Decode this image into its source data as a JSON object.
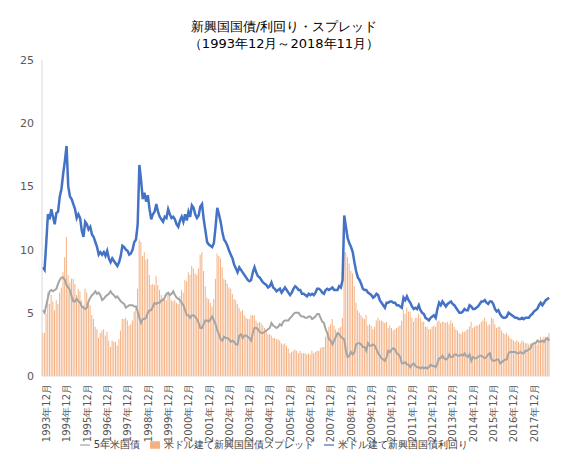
{
  "chart_data": {
    "type": "combo",
    "title": "新興国国債/利回り・スプレッド",
    "subtitle": "（1993年12月～2018年11月）",
    "categories": [
      "1993年12月",
      null,
      null,
      null,
      null,
      null,
      null,
      null,
      null,
      null,
      null,
      null,
      "1994年12月",
      null,
      null,
      null,
      null,
      null,
      null,
      null,
      null,
      null,
      null,
      null,
      "1995年12月",
      null,
      null,
      null,
      null,
      null,
      null,
      null,
      null,
      null,
      null,
      null,
      "1996年12月",
      null,
      null,
      null,
      null,
      null,
      null,
      null,
      null,
      null,
      null,
      null,
      "1997年12月",
      null,
      null,
      null,
      null,
      null,
      null,
      null,
      null,
      null,
      null,
      null,
      "1998年12月",
      null,
      null,
      null,
      null,
      null,
      null,
      null,
      null,
      null,
      null,
      null,
      "1999年12月",
      null,
      null,
      null,
      null,
      null,
      null,
      null,
      null,
      null,
      null,
      null,
      "2000年12月",
      null,
      null,
      null,
      null,
      null,
      null,
      null,
      null,
      null,
      null,
      null,
      "2001年12月",
      null,
      null,
      null,
      null,
      null,
      null,
      null,
      null,
      null,
      null,
      null,
      "2002年12月",
      null,
      null,
      null,
      null,
      null,
      null,
      null,
      null,
      null,
      null,
      null,
      "2003年12月",
      null,
      null,
      null,
      null,
      null,
      null,
      null,
      null,
      null,
      null,
      null,
      "2004年12月",
      null,
      null,
      null,
      null,
      null,
      null,
      null,
      null,
      null,
      null,
      null,
      "2005年12月",
      null,
      null,
      null,
      null,
      null,
      null,
      null,
      null,
      null,
      null,
      null,
      "2006年12月",
      null,
      null,
      null,
      null,
      null,
      null,
      null,
      null,
      null,
      null,
      null,
      "2007年12月",
      null,
      null,
      null,
      null,
      null,
      null,
      null,
      null,
      null,
      null,
      null,
      "2008年12月",
      null,
      null,
      null,
      null,
      null,
      null,
      null,
      null,
      null,
      null,
      null,
      "2009年12月",
      null,
      null,
      null,
      null,
      null,
      null,
      null,
      null,
      null,
      null,
      null,
      "2010年12月",
      null,
      null,
      null,
      null,
      null,
      null,
      null,
      null,
      null,
      null,
      null,
      "2011年12月",
      null,
      null,
      null,
      null,
      null,
      null,
      null,
      null,
      null,
      null,
      null,
      "2012年12月",
      null,
      null,
      null,
      null,
      null,
      null,
      null,
      null,
      null,
      null,
      null,
      "2013年12月",
      null,
      null,
      null,
      null,
      null,
      null,
      null,
      null,
      null,
      null,
      null,
      "2014年12月",
      null,
      null,
      null,
      null,
      null,
      null,
      null,
      null,
      null,
      null,
      null,
      "2015年12月",
      null,
      null,
      null,
      null,
      null,
      null,
      null,
      null,
      null,
      null,
      null,
      "2016年12月",
      null,
      null,
      null,
      null,
      null,
      null,
      null,
      null,
      null,
      null,
      null,
      "2017年12月",
      null,
      null,
      null,
      null,
      null,
      null,
      null,
      null,
      null,
      null,
      null
    ],
    "series": [
      {
        "name": "米ドル建て新興国国債スプレッド",
        "type": "bar",
        "color": "#f4b183",
        "values": [
          3.4,
          3.4,
          4.9,
          6.6,
          5.7,
          6.4,
          5.9,
          5.2,
          6.0,
          5.7,
          6.6,
          7.0,
          8.2,
          9.4,
          11.0,
          8.0,
          7.4,
          7.7,
          7.7,
          7.3,
          6.4,
          6.9,
          6.7,
          6.0,
          5.6,
          6.9,
          6.6,
          5.7,
          5.6,
          4.8,
          4.5,
          3.9,
          3.7,
          3.0,
          3.4,
          3.6,
          3.7,
          3.2,
          3.5,
          2.8,
          2.3,
          2.8,
          2.7,
          2.7,
          2.4,
          2.9,
          3.6,
          4.5,
          4.5,
          4.6,
          4.4,
          4.0,
          4.1,
          4.4,
          5.1,
          5.3,
          6.9,
          10.8,
          10.6,
          9.5,
          9.8,
          9.2,
          9.3,
          8.0,
          7.2,
          7.3,
          7.2,
          7.9,
          7.2,
          6.8,
          6.4,
          6.2,
          6.4,
          6.0,
          6.6,
          6.4,
          6.0,
          5.9,
          6.0,
          5.8,
          5.7,
          6.3,
          6.8,
          6.6,
          7.6,
          7.5,
          8.2,
          8.0,
          8.7,
          8.5,
          8.1,
          8.0,
          8.5,
          9.6,
          9.8,
          8.3,
          7.1,
          6.2,
          6.1,
          5.8,
          5.5,
          6.1,
          7.7,
          9.7,
          9.5,
          9.3,
          8.6,
          7.7,
          7.6,
          7.3,
          7.0,
          6.9,
          6.5,
          6.1,
          6.0,
          5.7,
          5.4,
          5.1,
          5.2,
          4.8,
          4.6,
          4.5,
          4.5,
          4.8,
          4.8,
          4.8,
          4.4,
          4.2,
          4.3,
          4.2,
          4.0,
          3.8,
          3.6,
          3.3,
          3.3,
          3.2,
          3.0,
          3.0,
          2.9,
          2.9,
          2.8,
          2.6,
          2.5,
          2.6,
          2.4,
          2.2,
          1.8,
          1.9,
          2.0,
          2.1,
          2.0,
          1.8,
          2.0,
          1.8,
          1.8,
          1.8,
          1.7,
          1.8,
          1.7,
          2.0,
          1.8,
          1.9,
          2.0,
          2.0,
          2.2,
          2.3,
          2.3,
          3.1,
          3.5,
          3.9,
          4.1,
          4.5,
          4.0,
          3.7,
          3.4,
          3.8,
          3.9,
          4.6,
          9.8,
          9.8,
          9.4,
          8.9,
          8.3,
          8.1,
          7.1,
          5.8,
          5.2,
          5.0,
          4.8,
          4.6,
          4.5,
          4.8,
          4.0,
          4.1,
          4.0,
          3.7,
          3.9,
          4.4,
          4.6,
          4.4,
          4.4,
          4.3,
          4.2,
          4.3,
          3.8,
          4.0,
          3.8,
          3.6,
          3.7,
          3.8,
          3.9,
          4.0,
          4.4,
          5.2,
          4.9,
          5.4,
          5.1,
          5.1,
          4.6,
          4.3,
          4.6,
          4.6,
          4.9,
          4.6,
          4.3,
          4.3,
          3.9,
          3.9,
          3.7,
          3.7,
          3.9,
          4.0,
          3.9,
          4.3,
          4.4,
          4.2,
          4.3,
          4.3,
          4.2,
          4.3,
          4.1,
          4.4,
          4.2,
          3.9,
          3.7,
          3.6,
          3.4,
          3.3,
          3.5,
          3.5,
          3.6,
          3.7,
          3.9,
          4.3,
          3.8,
          3.9,
          4.0,
          4.0,
          4.1,
          4.3,
          4.4,
          4.6,
          4.3,
          4.0,
          4.1,
          4.6,
          4.5,
          4.1,
          3.8,
          3.9,
          3.9,
          3.6,
          3.4,
          3.3,
          3.4,
          3.2,
          3.0,
          2.9,
          2.8,
          2.7,
          2.8,
          2.7,
          2.6,
          2.8,
          2.7,
          2.6,
          2.6,
          2.5,
          2.6,
          2.4,
          2.5,
          2.6,
          2.5,
          2.9,
          3.1,
          2.8,
          3.1,
          3.1,
          3.1,
          3.4
        ]
      },
      {
        "name": "米ドル建て新興国国債利回り",
        "type": "line",
        "color": "#4472c4",
        "values": [
          8.6,
          8.4,
          10.5,
          12.8,
          12.4,
          13.2,
          12.6,
          12.0,
          12.9,
          13.0,
          14.2,
          14.8,
          16.0,
          17.0,
          18.2,
          15.0,
          14.2,
          14.0,
          13.6,
          13.2,
          12.5,
          12.8,
          12.5,
          11.5,
          11.0,
          12.2,
          12.0,
          11.6,
          11.8,
          11.2,
          11.0,
          10.6,
          10.2,
          9.6,
          9.8,
          9.6,
          9.8,
          9.5,
          9.9,
          9.3,
          9.0,
          9.3,
          9.1,
          8.9,
          8.7,
          9.0,
          9.5,
          10.3,
          10.2,
          10.0,
          9.9,
          9.6,
          9.7,
          10.0,
          10.6,
          10.8,
          12.0,
          16.7,
          15.5,
          14.0,
          14.5,
          13.8,
          14.3,
          13.2,
          12.4,
          12.8,
          13.0,
          13.6,
          13.0,
          12.6,
          12.4,
          12.2,
          12.6,
          12.5,
          13.2,
          12.8,
          12.5,
          12.6,
          12.4,
          12.0,
          11.8,
          12.3,
          12.6,
          12.2,
          12.8,
          12.3,
          13.0,
          12.6,
          13.5,
          13.3,
          12.8,
          12.5,
          12.7,
          13.4,
          13.6,
          12.4,
          11.5,
          10.6,
          10.4,
          10.3,
          10.2,
          10.5,
          11.8,
          13.3,
          12.8,
          12.2,
          11.4,
          10.8,
          10.6,
          10.3,
          9.9,
          9.6,
          9.3,
          8.8,
          8.5,
          8.2,
          8.6,
          8.4,
          8.2,
          8.0,
          7.8,
          7.6,
          7.5,
          7.6,
          8.2,
          8.6,
          8.2,
          7.9,
          7.8,
          7.6,
          7.4,
          7.3,
          7.2,
          7.0,
          7.1,
          7.4,
          7.0,
          6.9,
          6.7,
          6.8,
          6.9,
          6.6,
          6.8,
          7.0,
          6.8,
          6.6,
          6.4,
          6.6,
          6.9,
          7.1,
          7.0,
          6.8,
          6.8,
          6.5,
          6.5,
          6.4,
          6.3,
          6.5,
          6.4,
          6.5,
          6.4,
          6.6,
          6.9,
          6.9,
          6.8,
          6.6,
          6.5,
          6.8,
          6.9,
          6.8,
          6.9,
          7.0,
          6.8,
          6.8,
          6.8,
          7.1,
          7.0,
          7.6,
          12.7,
          11.8,
          10.9,
          10.5,
          10.2,
          9.8,
          9.0,
          8.3,
          7.8,
          7.6,
          7.3,
          6.9,
          6.8,
          6.8,
          6.6,
          6.5,
          6.4,
          6.2,
          6.3,
          6.5,
          6.4,
          6.0,
          5.8,
          5.6,
          5.4,
          5.8,
          5.8,
          5.9,
          5.9,
          5.8,
          5.8,
          5.6,
          5.6,
          5.5,
          5.4,
          6.2,
          6.0,
          6.3,
          6.0,
          5.8,
          5.5,
          5.3,
          5.4,
          5.3,
          5.6,
          5.2,
          5.0,
          4.9,
          4.6,
          4.5,
          4.4,
          4.6,
          4.7,
          4.8,
          4.6,
          5.3,
          5.8,
          5.6,
          5.9,
          5.7,
          5.5,
          5.7,
          5.8,
          5.9,
          5.7,
          5.6,
          5.4,
          5.2,
          5.0,
          5.0,
          5.1,
          5.3,
          5.2,
          5.2,
          5.6,
          5.5,
          5.3,
          5.3,
          5.4,
          5.5,
          5.7,
          5.9,
          5.9,
          6.0,
          5.8,
          5.7,
          5.9,
          5.9,
          5.7,
          5.3,
          5.1,
          5.2,
          4.9,
          4.7,
          4.6,
          4.6,
          4.7,
          5.0,
          4.9,
          4.8,
          4.7,
          4.6,
          4.6,
          4.5,
          4.5,
          4.6,
          4.5,
          4.6,
          4.6,
          4.6,
          4.8,
          4.9,
          5.1,
          5.2,
          5.3,
          5.6,
          5.8,
          5.6,
          5.8,
          6.0,
          6.1,
          6.2
        ]
      },
      {
        "name": "5年米国債",
        "type": "line",
        "color": "#a5a5a5",
        "values": [
          5.2,
          5.0,
          5.6,
          6.2,
          6.7,
          6.8,
          6.7,
          6.8,
          6.9,
          7.3,
          7.6,
          7.8,
          7.8,
          7.6,
          7.2,
          7.0,
          6.8,
          6.3,
          5.9,
          5.9,
          6.1,
          5.9,
          5.8,
          5.5,
          5.4,
          5.3,
          5.4,
          5.9,
          6.2,
          6.4,
          6.5,
          6.7,
          6.5,
          6.6,
          6.4,
          6.0,
          6.1,
          6.3,
          6.4,
          6.5,
          6.7,
          6.5,
          6.4,
          6.2,
          6.3,
          6.1,
          5.9,
          5.8,
          5.7,
          5.4,
          5.5,
          5.6,
          5.6,
          5.6,
          5.5,
          5.5,
          5.1,
          4.6,
          4.2,
          4.5,
          4.5,
          4.6,
          5.0,
          5.2,
          5.2,
          5.5,
          5.8,
          5.7,
          5.8,
          5.8,
          6.0,
          6.0,
          6.2,
          6.5,
          6.6,
          6.4,
          6.5,
          6.7,
          6.4,
          6.2,
          6.1,
          6.0,
          5.8,
          5.6,
          5.2,
          4.8,
          4.8,
          4.6,
          4.8,
          4.8,
          4.7,
          4.5,
          4.2,
          3.8,
          3.8,
          4.1,
          4.4,
          4.4,
          4.3,
          4.5,
          4.7,
          4.4,
          4.1,
          3.6,
          3.3,
          2.9,
          2.8,
          3.1,
          3.0,
          3.0,
          2.9,
          2.7,
          2.8,
          2.7,
          2.5,
          2.5,
          3.2,
          3.3,
          3.0,
          3.2,
          3.2,
          3.1,
          3.0,
          2.8,
          3.4,
          3.8,
          3.8,
          3.7,
          3.5,
          3.4,
          3.4,
          3.5,
          3.6,
          3.7,
          3.8,
          4.2,
          4.0,
          3.9,
          3.8,
          3.9,
          4.1,
          4.0,
          4.3,
          4.4,
          4.4,
          4.4,
          4.6,
          4.7,
          4.9,
          5.0,
          5.0,
          5.0,
          4.8,
          4.7,
          4.7,
          4.6,
          4.6,
          4.7,
          4.7,
          4.5,
          4.6,
          4.7,
          4.9,
          4.9,
          4.6,
          4.3,
          4.2,
          3.7,
          3.4,
          2.9,
          2.8,
          2.5,
          2.8,
          3.1,
          3.4,
          3.3,
          3.1,
          3.0,
          2.9,
          2.0,
          1.5,
          1.6,
          1.9,
          1.7,
          1.9,
          2.5,
          2.6,
          2.6,
          2.5,
          2.3,
          2.3,
          2.0,
          2.6,
          2.4,
          2.4,
          2.5,
          2.4,
          2.1,
          1.8,
          1.6,
          1.4,
          1.3,
          1.2,
          1.5,
          2.0,
          1.9,
          2.1,
          2.2,
          2.1,
          1.8,
          1.7,
          1.5,
          1.0,
          1.0,
          1.1,
          0.9,
          0.9,
          0.7,
          0.9,
          1.0,
          0.8,
          0.7,
          0.7,
          0.6,
          0.7,
          0.6,
          0.7,
          0.6,
          0.7,
          0.9,
          0.8,
          0.8,
          0.7,
          1.0,
          1.4,
          1.4,
          1.6,
          1.4,
          1.3,
          1.4,
          1.7,
          1.5,
          1.5,
          1.7,
          1.7,
          1.6,
          1.6,
          1.7,
          1.6,
          1.8,
          1.6,
          1.5,
          1.7,
          1.2,
          1.5,
          1.4,
          1.4,
          1.5,
          1.6,
          1.6,
          1.5,
          1.4,
          1.5,
          1.7,
          1.8,
          1.3,
          1.2,
          1.2,
          1.3,
          1.3,
          1.0,
          1.1,
          1.2,
          1.3,
          1.3,
          1.8,
          1.9,
          1.9,
          1.9,
          1.9,
          1.8,
          1.8,
          1.9,
          1.8,
          1.8,
          2.0,
          2.0,
          2.1,
          2.2,
          2.5,
          2.6,
          2.6,
          2.8,
          2.7,
          2.7,
          2.8,
          2.7,
          2.9,
          3.0,
          2.8
        ]
      }
    ],
    "ylim": [
      0,
      25
    ],
    "yticks": [
      0,
      5,
      10,
      15,
      20,
      25
    ],
    "grid": false,
    "legend": "bottom"
  }
}
